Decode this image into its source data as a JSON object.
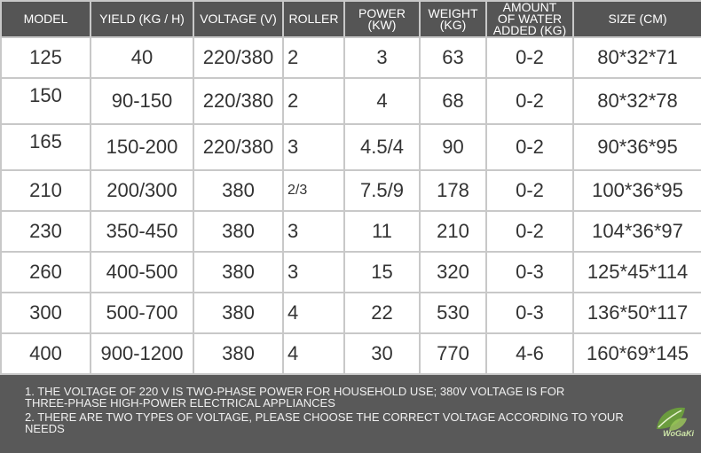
{
  "table": {
    "headers": [
      "MODEL",
      "YIELD (KG / H)",
      "VOLTAGE (V)",
      "ROLLER",
      "POWER\n(KW)",
      "WEIGHT\n(KG)",
      "AMOUNT\nOF WATER\nADDED (KG)",
      "SIZE (CM)"
    ],
    "rows": [
      {
        "style": "white",
        "cells": [
          "125",
          "40",
          "220/380",
          "2",
          "3",
          "63",
          "0-2",
          "80*32*71"
        ]
      },
      {
        "style": "blue",
        "cells": [
          "150",
          "90-150",
          "220/380",
          "2",
          "4",
          "68",
          "0-2",
          "80*32*78"
        ]
      },
      {
        "style": "orange",
        "cells": [
          "165",
          "150-200",
          "220/380",
          "3",
          "4.5/4",
          "90",
          "0-2",
          "90*36*95"
        ]
      },
      {
        "style": "white",
        "cells": [
          "210",
          "200/300",
          "380",
          "2/3",
          "7.5/9",
          "178",
          "0-2",
          "100*36*95"
        ]
      },
      {
        "style": "dark",
        "cells": [
          "230",
          "350-450",
          "380",
          "3",
          "11",
          "210",
          "0-2",
          "104*36*97"
        ]
      },
      {
        "style": "white",
        "cells": [
          "260",
          "400-500",
          "380",
          "3",
          "15",
          "320",
          "0-3",
          "125*45*114"
        ]
      },
      {
        "style": "dark",
        "cells": [
          "300",
          "500-700",
          "380",
          "4",
          "22",
          "530",
          "0-3",
          "136*50*117"
        ]
      },
      {
        "style": "white",
        "cells": [
          "400",
          "900-1200",
          "380",
          "4",
          "30",
          "770",
          "4-6",
          "160*69*145"
        ]
      }
    ]
  },
  "notes": {
    "line1": "1. THE VOLTAGE OF 220 V IS TWO-PHASE POWER FOR HOUSEHOLD USE; 380V VOLTAGE IS FOR",
    "line2": "THREE-PHASE HIGH-POWER ELECTRICAL APPLIANCES",
    "line3": "2. THERE ARE TWO TYPES OF VOLTAGE, PLEASE CHOOSE THE CORRECT VOLTAGE ACCORDING TO YOUR",
    "line4": "NEEDS"
  },
  "logo": {
    "icon": "leaf-logo-icon",
    "text": "WoGaKi"
  },
  "colors": {
    "dark": "#555555",
    "blue": "#2b8ff0",
    "orange": "#ff8a1c",
    "grid": "#c8c8c8"
  }
}
